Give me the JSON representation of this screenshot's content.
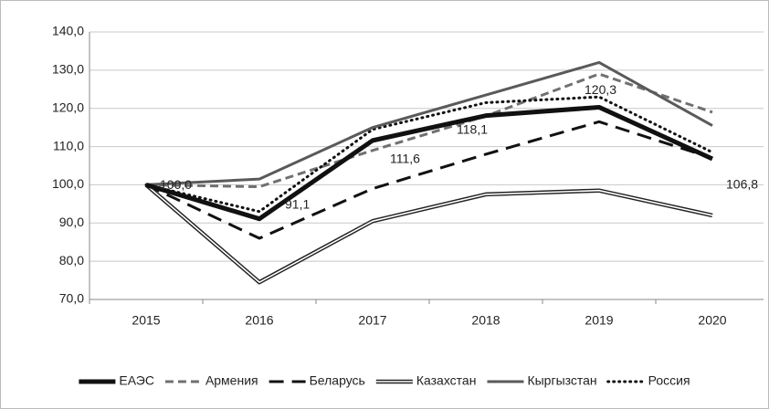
{
  "chart_data": {
    "type": "line",
    "categories": [
      "2015",
      "2016",
      "2017",
      "2018",
      "2019",
      "2020"
    ],
    "ylim": [
      70,
      140
    ],
    "yticks": [
      {
        "value": 70,
        "label": "70,0"
      },
      {
        "value": 80,
        "label": "80,0"
      },
      {
        "value": 90,
        "label": "90,0"
      },
      {
        "value": 100,
        "label": "100,0"
      },
      {
        "value": 110,
        "label": "110,0"
      },
      {
        "value": 120,
        "label": "120,0"
      },
      {
        "value": 130,
        "label": "130,0"
      },
      {
        "value": 140,
        "label": "140,0"
      }
    ],
    "grid": true,
    "legend": "bottom",
    "series": [
      {
        "name": "ЕАЭС",
        "color": "#111111",
        "line_style": "bold",
        "values": [
          100,
          91.1,
          111.6,
          118.1,
          120.3,
          106.8
        ],
        "value_labels": [
          "100,0",
          "91,1",
          "111,6",
          "118,1",
          "120,3",
          "106,8"
        ]
      },
      {
        "name": "Армения",
        "color": "#707070",
        "line_style": "dashed",
        "values": [
          100,
          99.5,
          109,
          118,
          129,
          119
        ]
      },
      {
        "name": "Беларусь",
        "color": "#111111",
        "line_style": "long-dashed",
        "values": [
          100,
          86,
          99,
          108,
          116.5,
          107
        ]
      },
      {
        "name": "Казахстан",
        "color": "#222222",
        "line_style": "double",
        "values": [
          100,
          74.5,
          90.5,
          97.5,
          98.5,
          92
        ]
      },
      {
        "name": "Кыргызстан",
        "color": "#5a5a5a",
        "line_style": "solid",
        "values": [
          100,
          101.5,
          115,
          123.5,
          132,
          115.5
        ]
      },
      {
        "name": "Россия",
        "color": "#111111",
        "line_style": "dotted",
        "values": [
          100,
          93,
          114.5,
          121.5,
          123,
          108.5
        ]
      }
    ]
  }
}
